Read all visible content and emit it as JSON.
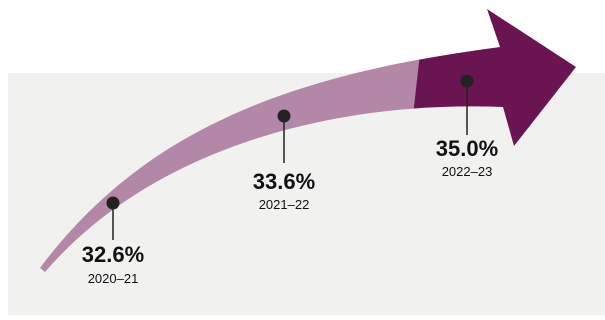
{
  "colors": {
    "panel": "#f1f1f0",
    "arrow_light": "#b387a8",
    "arrow_dark": "#6b1452",
    "marker": "#222222"
  },
  "milestones": [
    {
      "value": "32.6%",
      "period": "2020–21"
    },
    {
      "value": "33.6%",
      "period": "2021–22"
    },
    {
      "value": "35.0%",
      "period": "2022–23"
    }
  ]
}
